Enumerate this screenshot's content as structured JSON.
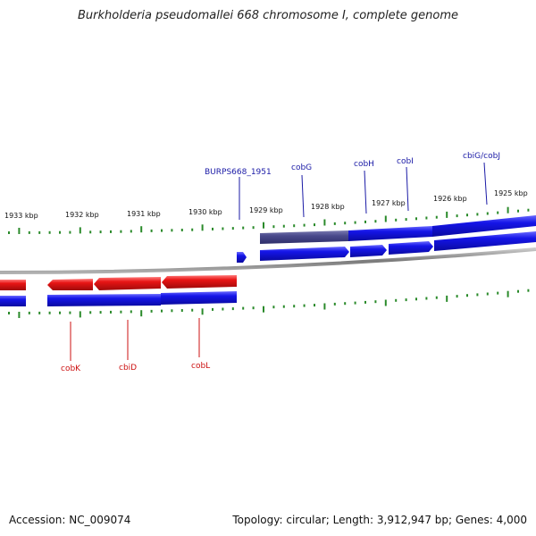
{
  "title": "Burkholderia pseudomallei 668 chromosome I, complete genome",
  "footer": {
    "accession": "Accession: NC_009074",
    "topology": "Topology: circular; Length: 3,912,947 bp; Genes: 4,000"
  },
  "kbp_labels": [
    "1933 kbp",
    "1932 kbp",
    "1931 kbp",
    "1930 kbp",
    "1929 kbp",
    "1928 kbp",
    "1927 kbp",
    "1926 kbp",
    "1925 kbp"
  ],
  "genes_top": [
    "BURPS668_1951",
    "cobG",
    "cobH",
    "cobI",
    "cbiG/cobJ"
  ],
  "genes_bottom": [
    "cobK",
    "cbiD",
    "cobL"
  ],
  "colors": {
    "forward": "#1515e8",
    "reverse": "#e81515",
    "highlight": "#4a4a8c",
    "tick": "#2a8a2a",
    "backbone": "#8a8a8a"
  }
}
